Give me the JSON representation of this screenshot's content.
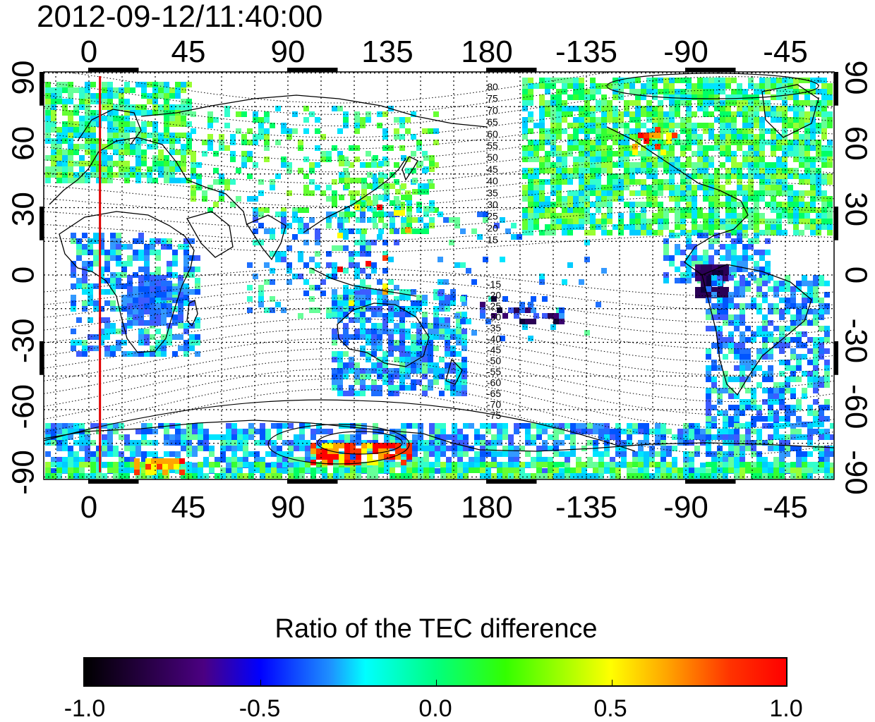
{
  "timestamp": "2012-09-12/11:40:00",
  "map": {
    "longitude_ticks_top": [
      "0",
      "45",
      "90",
      "135",
      "180",
      "-135",
      "-90",
      "-45"
    ],
    "longitude_ticks_bottom": [
      "0",
      "45",
      "90",
      "135",
      "180",
      "-135",
      "-90",
      "-45"
    ],
    "latitude_ticks_left": [
      "90",
      "60",
      "30",
      "0",
      "-30",
      "-60",
      "-90"
    ],
    "latitude_ticks_right": [
      "90",
      "60",
      "30",
      "0",
      "-30",
      "-60",
      "-90"
    ],
    "contour_labels_north": [
      "80",
      "75",
      "70",
      "65",
      "60",
      "55",
      "50",
      "45",
      "40",
      "35",
      "30",
      "25",
      "20",
      "15"
    ],
    "contour_labels_south": [
      "-15",
      "-20",
      "-25",
      "-30",
      "-35",
      "-40",
      "-45",
      "-50",
      "-55",
      "-60",
      "-65",
      "-70",
      "-75"
    ],
    "marker_longitude": 5,
    "marker_color": "#e00000",
    "grid": true
  },
  "colorbar": {
    "title": "Ratio of the TEC difference",
    "labels": [
      "-1.0",
      "-0.5",
      "0.0",
      "0.5",
      "1.0"
    ],
    "range": [
      -1.0,
      1.0
    ]
  }
}
